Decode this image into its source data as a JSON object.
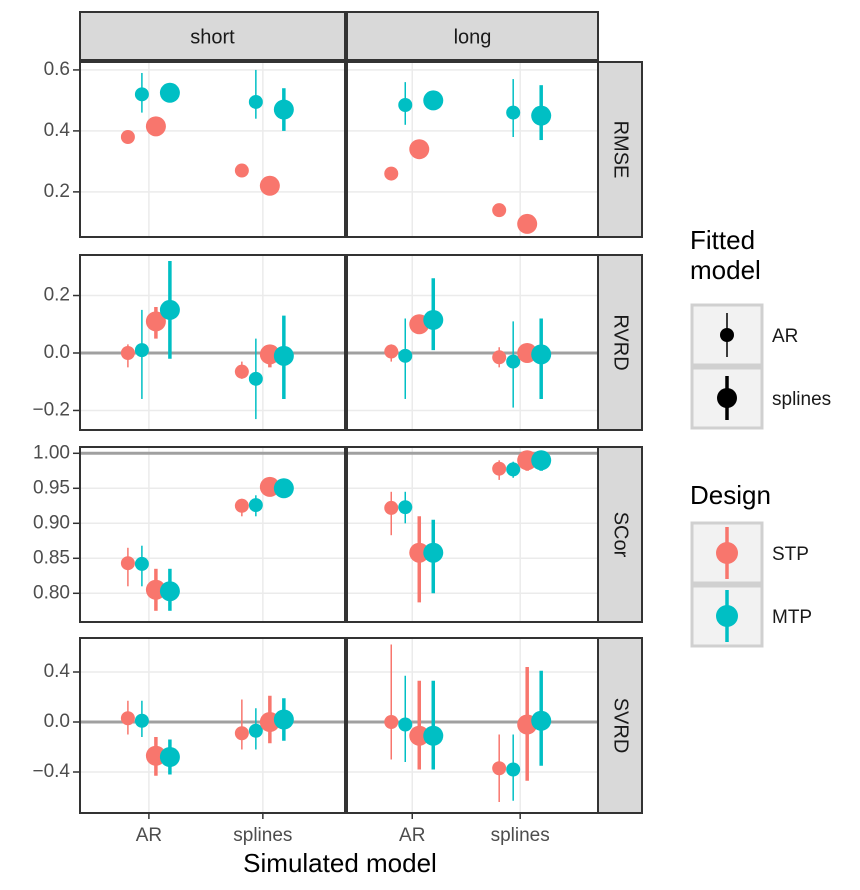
{
  "chart_data": {
    "type": "pointrange",
    "x_label": "Simulated model",
    "columns": [
      "short",
      "long"
    ],
    "categories": [
      "AR",
      "splines"
    ],
    "legends": [
      {
        "title": "Fitted model",
        "entries": [
          "AR",
          "splines"
        ]
      },
      {
        "title": "Design",
        "entries": [
          {
            "name": "STP",
            "color": "#F8766D"
          },
          {
            "name": "MTP",
            "color": "#00BFC4"
          }
        ]
      }
    ],
    "grid": true,
    "rows": [
      {
        "name": "RMSE",
        "ylim": [
          0.052,
          0.626
        ],
        "yticks": [
          {
            "value": 0.2,
            "label": "0.2"
          },
          {
            "value": 0.4,
            "label": "0.4"
          },
          {
            "value": 0.6,
            "label": "0.6"
          }
        ],
        "hline": null,
        "panels": [
          {
            "values": [
              [
                [
                  0.38,
                  0.52
                ],
                [
                  0.415,
                  0.525
                ]
              ],
              [
                [
                  0.27,
                  0.495
                ],
                [
                  0.22,
                  0.47
                ]
              ]
            ],
            "lower": [
              [
                [
                  null,
                  0.46
                ],
                [
                  null,
                  0.5
                ]
              ],
              [
                [
                  null,
                  0.44
                ],
                [
                  null,
                  0.4
                ]
              ]
            ],
            "upper": [
              [
                [
                  null,
                  0.59
                ],
                [
                  null,
                  0.55
                ]
              ],
              [
                [
                  null,
                  0.6
                ],
                [
                  null,
                  0.54
                ]
              ]
            ]
          },
          {
            "values": [
              [
                [
                  0.26,
                  0.485
                ],
                [
                  0.34,
                  0.5
                ]
              ],
              [
                [
                  0.14,
                  0.46
                ],
                [
                  0.095,
                  0.45
                ]
              ]
            ],
            "lower": [
              [
                [
                  null,
                  0.42
                ],
                [
                  null,
                  0.47
                ]
              ],
              [
                [
                  null,
                  0.38
                ],
                [
                  null,
                  0.37
                ]
              ]
            ],
            "upper": [
              [
                [
                  null,
                  0.56
                ],
                [
                  null,
                  0.53
                ]
              ],
              [
                [
                  null,
                  0.57
                ],
                [
                  null,
                  0.55
                ]
              ]
            ]
          }
        ]
      },
      {
        "name": "RVRD",
        "ylim": [
          -0.268,
          0.341
        ],
        "yticks": [
          {
            "value": -0.2,
            "label": "−0.2"
          },
          {
            "value": 0,
            "label": "0.0"
          },
          {
            "value": 0.2,
            "label": "0.2"
          }
        ],
        "hline": 0,
        "panels": [
          {
            "values": [
              [
                [
                  0,
                  0.01
                ],
                [
                  0.11,
                  0.15
                ]
              ],
              [
                [
                  -0.065,
                  -0.09
                ],
                [
                  -0.005,
                  -0.01
                ]
              ]
            ],
            "lower": [
              [
                [
                  -0.05,
                  -0.16
                ],
                [
                  0.05,
                  -0.02
                ]
              ],
              [
                [
                  -0.09,
                  -0.23
                ],
                [
                  -0.05,
                  -0.16
                ]
              ]
            ],
            "upper": [
              [
                [
                  0.03,
                  0.15
                ],
                [
                  0.16,
                  0.32
                ]
              ],
              [
                [
                  -0.03,
                  0.05
                ],
                [
                  0.02,
                  0.13
                ]
              ]
            ]
          },
          {
            "values": [
              [
                [
                  0.005,
                  -0.01
                ],
                [
                  0.1,
                  0.115
                ]
              ],
              [
                [
                  -0.015,
                  -0.03
                ],
                [
                  0,
                  -0.005
                ]
              ]
            ],
            "lower": [
              [
                [
                  -0.03,
                  -0.16
                ],
                [
                  0.07,
                  0.01
                ]
              ],
              [
                [
                  -0.05,
                  -0.19
                ],
                [
                  -0.03,
                  -0.16
                ]
              ]
            ],
            "upper": [
              [
                [
                  0.03,
                  0.12
                ],
                [
                  0.13,
                  0.26
                ]
              ],
              [
                [
                  0.02,
                  0.11
                ],
                [
                  0.03,
                  0.12
                ]
              ]
            ]
          }
        ]
      },
      {
        "name": "SCor",
        "ylim": [
          0.759,
          1.009
        ],
        "yticks": [
          {
            "value": 0.8,
            "label": "0.80"
          },
          {
            "value": 0.85,
            "label": "0.85"
          },
          {
            "value": 0.9,
            "label": "0.90"
          },
          {
            "value": 0.95,
            "label": "0.95"
          },
          {
            "value": 1,
            "label": "1.00"
          }
        ],
        "hline": 1,
        "panels": [
          {
            "values": [
              [
                [
                  0.843,
                  0.842
                ],
                [
                  0.805,
                  0.803
                ]
              ],
              [
                [
                  0.925,
                  0.926
                ],
                [
                  0.952,
                  0.95
                ]
              ]
            ],
            "lower": [
              [
                [
                  0.81,
                  0.81
                ],
                [
                  0.775,
                  0.775
                ]
              ],
              [
                [
                  0.91,
                  0.91
                ],
                [
                  0.94,
                  0.94
                ]
              ]
            ],
            "upper": [
              [
                [
                  0.865,
                  0.868
                ],
                [
                  0.835,
                  0.835
                ]
              ],
              [
                [
                  0.935,
                  0.94
                ],
                [
                  0.965,
                  0.96
                ]
              ]
            ]
          },
          {
            "values": [
              [
                [
                  0.922,
                  0.923
                ],
                [
                  0.858,
                  0.858
                ]
              ],
              [
                [
                  0.978,
                  0.977
                ],
                [
                  0.99,
                  0.99
                ]
              ]
            ],
            "lower": [
              [
                [
                  0.883,
                  0.9
                ],
                [
                  0.787,
                  0.8
                ]
              ],
              [
                [
                  0.962,
                  0.965
                ],
                [
                  0.975,
                  0.975
                ]
              ]
            ],
            "upper": [
              [
                [
                  0.945,
                  0.945
                ],
                [
                  0.91,
                  0.905
                ]
              ],
              [
                [
                  0.99,
                  0.988
                ],
                [
                  1,
                  1
                ]
              ]
            ]
          }
        ]
      },
      {
        "name": "SVRD",
        "ylim": [
          -0.728,
          0.672
        ],
        "yticks": [
          {
            "value": -0.4,
            "label": "−0.4"
          },
          {
            "value": 0,
            "label": "0.0"
          },
          {
            "value": 0.4,
            "label": "0.4"
          }
        ],
        "hline": 0,
        "panels": [
          {
            "values": [
              [
                [
                  0.03,
                  0.01
                ],
                [
                  -0.27,
                  -0.28
                ]
              ],
              [
                [
                  -0.09,
                  -0.07
                ],
                [
                  0,
                  0.02
                ]
              ]
            ],
            "lower": [
              [
                [
                  -0.1,
                  -0.12
                ],
                [
                  -0.43,
                  -0.42
                ]
              ],
              [
                [
                  -0.22,
                  -0.22
                ],
                [
                  -0.17,
                  -0.15
                ]
              ]
            ],
            "upper": [
              [
                [
                  0.17,
                  0.17
                ],
                [
                  -0.12,
                  -0.14
                ]
              ],
              [
                [
                  0.18,
                  0.11
                ],
                [
                  0.21,
                  0.19
                ]
              ]
            ]
          },
          {
            "values": [
              [
                [
                  0,
                  -0.02
                ],
                [
                  -0.11,
                  -0.11
                ]
              ],
              [
                [
                  -0.37,
                  -0.38
                ],
                [
                  -0.02,
                  0.01
                ]
              ]
            ],
            "lower": [
              [
                [
                  -0.3,
                  -0.32
                ],
                [
                  -0.38,
                  -0.38
                ]
              ],
              [
                [
                  -0.64,
                  -0.63
                ],
                [
                  -0.47,
                  -0.35
                ]
              ]
            ],
            "upper": [
              [
                [
                  0.62,
                  0.37
                ],
                [
                  0.33,
                  0.33
                ]
              ],
              [
                [
                  -0.1,
                  -0.1
                ],
                [
                  0.44,
                  0.41
                ]
              ]
            ]
          }
        ]
      }
    ]
  }
}
